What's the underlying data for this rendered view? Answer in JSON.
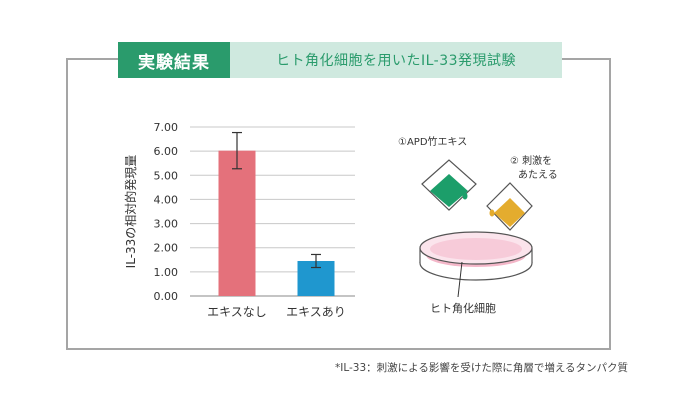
{
  "header": {
    "badge": "実験結果",
    "subtitle": "ヒト角化細胞を用いたIL-33発現試験"
  },
  "chart_data": {
    "type": "bar",
    "categories": [
      "エキスなし",
      "エキスあり"
    ],
    "values": [
      6.02,
      1.45
    ],
    "errors": [
      0.75,
      0.27
    ],
    "colors": [
      "#e4717b",
      "#1f97cf"
    ],
    "ylabel": "IL-33の相対的発現量",
    "ylim": [
      0,
      7
    ],
    "yticks": [
      "0.00",
      "1.00",
      "2.00",
      "3.00",
      "4.00",
      "5.00",
      "6.00",
      "7.00"
    ],
    "grid": true
  },
  "illustration": {
    "step1": "①APD竹エキス",
    "step2_line1": "② 刺激を",
    "step2_line2": "あたえる",
    "dish_label": "ヒト角化細胞"
  },
  "footnote": "*IL-33：刺激による影響を受けた際に角層で増えるタンパク質"
}
